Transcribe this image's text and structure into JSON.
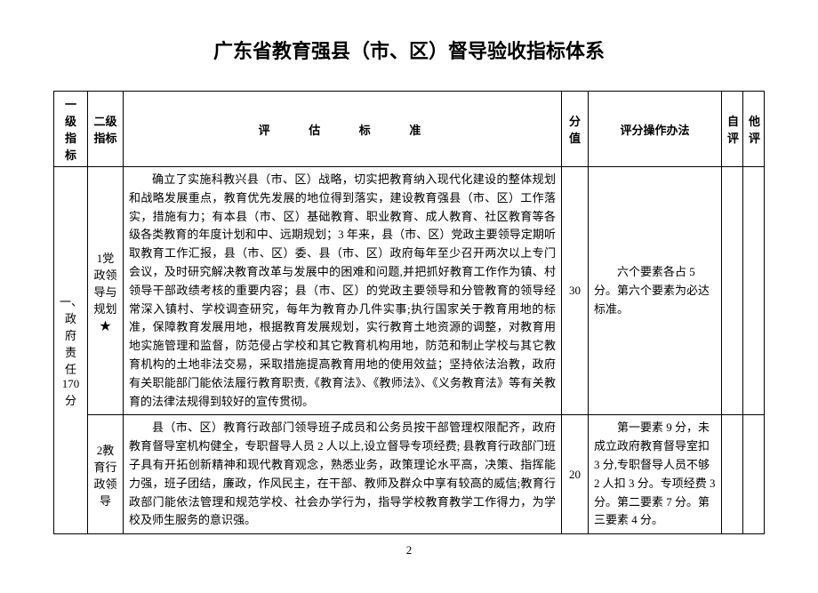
{
  "title": "广东省教育强县（市、区）督导验收指标体系",
  "headers": {
    "level1": "一级指标",
    "level2": "二级指标",
    "criteria": "评 估 标 准",
    "score": "分值",
    "method": "评分操作办法",
    "self": "自评",
    "other": "他评"
  },
  "rows": {
    "level1": {
      "label": "一、政府责任170分"
    },
    "row1": {
      "level2": "1党政领导与规划★",
      "criteria": "确立了实施科教兴县（市、区）战略，切实把教育纳入现代化建设的整体规划和战略发展重点，教育优先发展的地位得到落实，建设教育强县（市、区）工作落实，措施有力；有本县（市、区）基础教育、职业教育、成人教育、社区教育等各级各类教育的年度计划和中、远期规划；3 年来，县（市、区）党政主要领导定期听取教育工作汇报，县（市、区）委、县（市、区）政府每年至少召开两次以上专门会议，及时研究解决教育改革与发展中的困难和问题,并把抓好教育工作作为镇、村领导干部政绩考核的重要内容；县（市、区）的党政主要领导和分管教育的领导经常深入镇村、学校调查研究，每年为教育办几件实事;执行国家关于教育用地的标准，保障教育发展用地，根据教育发展规划，实行教育土地资源的调整，对教育用地实施管理和监督，防范侵占学校和其它教育机构用地，防范和制止学校与其它教育机构的土地非法交易，采取措施提高教育用地的使用效益；坚持依法治教，政府有关职能部门能依法履行教育职责,《教育法》、《教师法》、《义务教育法》等有关教育的法律法规得到较好的宣传贯彻。",
      "score": "30",
      "method": "六个要素各占 5 分。第六个要素为必达标准。"
    },
    "row2": {
      "level2": "2教育行政领导",
      "criteria": "县（市、区）教育行政部门领导班子成员和公务员按干部管理权限配齐，政府教育督导室机构健全，专职督导人员 2 人以上,设立督导专项经费; 县教育行政部门班子具有开拓创新精神和现代教育观念，熟悉业务，政策理论水平高，决策、指挥能力强，班子团结，廉政，作风民主，在干部、教师及群众中享有较高的威信;教育行政部门能依法管理和规范学校、社会办学行为，指导学校教育教学工作得力，为学校及师生服务的意识强。",
      "score": "20",
      "method": "第一要素 9 分，未成立政府教育督导室扣 3 分,专职督导人员不够 2 人扣 3 分。专项经费 3 分。第二要素 7 分。第三要素 4 分。"
    }
  },
  "pageNumber": "2"
}
